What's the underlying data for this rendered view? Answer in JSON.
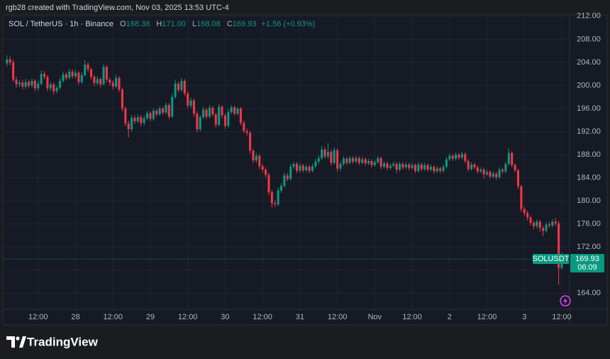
{
  "header": {
    "text": "rgb28 created with TradingView.com, Nov 03, 2025 13:53 UTC-4"
  },
  "chart_data": {
    "type": "candlestick",
    "title": "SOL / TetherUS · 1h · Binance",
    "ohlc_legend": [
      {
        "key": "O",
        "value": "168.38"
      },
      {
        "key": "H",
        "value": "171.00"
      },
      {
        "key": "L",
        "value": "168.08"
      },
      {
        "key": "C",
        "value": "169.93"
      }
    ],
    "change": "+1.56 (+0.93%)",
    "open": [
      203.8,
      204.5,
      204,
      201,
      200.2,
      200.5,
      199.8,
      200.6,
      200,
      200.8,
      199.5,
      200.3,
      202,
      201.5,
      199.5,
      200.2,
      199,
      199.6,
      200.8,
      201.9,
      201.3,
      202.4,
      201.6,
      202.2,
      200.6,
      201.8,
      203.6,
      202.8,
      201.5,
      200.4,
      201.1,
      200.2,
      203.2,
      201,
      200.5,
      199.8,
      201.3,
      199.3,
      196,
      193.4,
      192.4,
      194.4,
      193.8,
      194.5,
      193.5,
      194.3,
      195.2,
      194.2,
      195.6,
      195,
      196,
      195.3,
      196.6,
      194.6,
      198,
      200.3,
      199.2,
      200.8,
      198.6,
      196.5,
      197.4,
      195.1,
      192.4,
      194.5,
      195.8,
      194.6,
      196.1,
      195,
      193.2,
      196.3,
      194.8,
      193,
      195.4,
      196.2,
      195.1,
      196,
      193.5,
      192.1,
      191.8,
      188.7,
      187,
      187.8,
      186,
      185.4,
      184.5,
      181.5,
      179.6,
      179.4,
      181.8,
      182.6,
      184.4,
      183.8,
      185.9,
      186.4,
      185.2,
      186.1,
      185.3,
      185.9,
      185.2,
      186,
      186.8,
      187.4,
      188.9,
      187.7,
      188.5,
      186.6,
      188.8,
      185.6,
      186.4,
      187.3,
      186.6,
      187.4,
      186.8,
      187.4,
      186.6,
      187.2,
      186.5,
      186.9,
      186.2,
      186.7,
      187.4,
      185.9,
      186.5,
      185.7,
      186.1,
      186.4,
      185.4,
      186.4,
      185.8,
      186.3,
      185.7,
      186.2,
      185.2,
      186.3,
      185.5,
      186.2,
      185.4,
      185.9,
      185.1,
      185.6,
      185.2,
      185.9,
      187.2,
      187.8,
      187.3,
      188,
      187.5,
      188.1,
      186.9,
      185.5,
      186.3,
      185.8,
      185.1,
      185.4,
      184.6,
      185,
      184.2,
      184.7,
      184.1,
      185.4,
      185.1,
      186.4,
      188.3,
      186.2,
      185.3,
      182.5,
      178.6,
      177.9,
      177.1,
      176.2,
      175.6,
      176.4,
      175.3,
      174.8,
      175.9,
      175.7,
      176.4,
      176.1,
      168.38
    ],
    "high": [
      205.2,
      205,
      204.4,
      201.5,
      201,
      201,
      201.1,
      201,
      201.2,
      201.1,
      200.8,
      202.6,
      202.5,
      201.8,
      200.6,
      200.5,
      200,
      201.3,
      202.4,
      202.3,
      202.9,
      202.8,
      202.7,
      202.5,
      202.3,
      204.4,
      204,
      203.1,
      201.8,
      201.6,
      201.4,
      203.7,
      203.5,
      201.4,
      200.9,
      201.8,
      201.6,
      199.6,
      196.4,
      193.9,
      194.9,
      194.8,
      195,
      194.9,
      194.8,
      195.6,
      195.5,
      196,
      196,
      196.4,
      196.3,
      197,
      196.9,
      198.5,
      201,
      200.7,
      201.3,
      201.1,
      199,
      197.9,
      197.7,
      195.5,
      194.9,
      196.3,
      196.1,
      196.6,
      196.4,
      195.3,
      196.8,
      196.6,
      195.2,
      195.9,
      196.6,
      196.5,
      196.3,
      196.3,
      193.9,
      192.5,
      192.1,
      189,
      188.3,
      188.1,
      186.4,
      185.8,
      184.9,
      181.9,
      180.1,
      182.3,
      183.1,
      184.9,
      184.8,
      186.4,
      186.8,
      186.7,
      186.5,
      186.4,
      186.3,
      186.2,
      186.4,
      187.3,
      187.9,
      189.5,
      189.3,
      190,
      188.9,
      189.3,
      189.1,
      186.8,
      187.7,
      187.6,
      187.8,
      187.7,
      187.8,
      187.7,
      187.6,
      187.5,
      187.3,
      187.2,
      187.1,
      187.8,
      187.7,
      186.9,
      186.8,
      186.5,
      186.8,
      186.7,
      186.8,
      186.7,
      186.7,
      186.6,
      186.6,
      186.5,
      186.7,
      186.6,
      186.6,
      186.5,
      186.3,
      186.2,
      186,
      185.9,
      186.3,
      187.6,
      188.2,
      188.1,
      188.4,
      188.3,
      188.5,
      188.4,
      187.2,
      186.7,
      186.6,
      186.1,
      185.8,
      185.7,
      185.4,
      185.3,
      185.1,
      185,
      185.8,
      185.7,
      186.8,
      189.1,
      188.6,
      186.5,
      185.6,
      182.8,
      179,
      178.3,
      177.5,
      176.6,
      176.8,
      176.7,
      175.7,
      176.3,
      176.4,
      176.8,
      177,
      176.6,
      171
    ],
    "low": [
      203.3,
      203.5,
      200.6,
      199.6,
      199.7,
      199.3,
      199.4,
      199.5,
      199.6,
      199,
      199.1,
      200,
      201,
      199,
      199.1,
      198.4,
      198.6,
      199.3,
      200.5,
      200.9,
      201,
      201.2,
      201.2,
      200.1,
      200.3,
      201.5,
      202.3,
      201,
      199.9,
      200,
      199.7,
      200,
      200.6,
      200,
      199.3,
      199.5,
      198.8,
      195.5,
      192.9,
      191,
      192,
      193.3,
      193.4,
      193,
      193.1,
      194,
      193.8,
      193.9,
      194.6,
      194.7,
      194.9,
      195,
      194.2,
      194.3,
      197.7,
      198.8,
      198.9,
      198.2,
      196,
      196.1,
      194.6,
      191.9,
      192,
      194.2,
      194.2,
      194.3,
      194.6,
      192.7,
      192.9,
      194.3,
      192.5,
      192.7,
      195,
      194.7,
      194.8,
      193.1,
      191.7,
      191.3,
      188.2,
      186.5,
      186.6,
      185.5,
      184.9,
      184,
      181,
      178.8,
      178.9,
      179.1,
      181.4,
      182.3,
      183.4,
      183.5,
      185.5,
      184.8,
      184.9,
      184.9,
      185,
      184.8,
      184.9,
      185.7,
      186.4,
      187,
      187.3,
      187.3,
      186.1,
      186.3,
      185,
      185.2,
      186,
      186.2,
      186.3,
      186.4,
      186.5,
      186.2,
      186.3,
      186.1,
      186.2,
      185.8,
      185.9,
      186.4,
      185.5,
      185.6,
      185.3,
      185.4,
      185.8,
      184.8,
      185.1,
      185.4,
      185.5,
      185.3,
      185.4,
      184.8,
      184.9,
      185.1,
      185.2,
      185,
      185.1,
      184.7,
      184.8,
      184.8,
      184.9,
      185.6,
      186.9,
      186.9,
      187,
      187.1,
      187.2,
      186.5,
      185.1,
      185.2,
      185.4,
      184.7,
      184.8,
      183.9,
      184.3,
      183.8,
      183.9,
      183.6,
      183.8,
      184.7,
      184.8,
      186.1,
      185.8,
      184.9,
      182,
      178.1,
      177.4,
      176.6,
      175.7,
      175.1,
      175.2,
      174.6,
      173.9,
      174.5,
      175.3,
      175.4,
      175.7,
      165.5,
      168.08
    ],
    "close": [
      204.5,
      204,
      201,
      200.2,
      200.5,
      199.8,
      200.6,
      200,
      200.8,
      199.5,
      200.3,
      202,
      201.5,
      199.5,
      200.2,
      199,
      199.6,
      200.8,
      201.9,
      201.3,
      202.4,
      201.6,
      202.2,
      200.6,
      201.8,
      203.6,
      202.8,
      201.5,
      200.4,
      201.1,
      200.2,
      203.2,
      201,
      200.5,
      199.8,
      201.3,
      199.3,
      196,
      193.4,
      192.4,
      194.4,
      193.8,
      194.5,
      193.5,
      194.3,
      195.2,
      194.2,
      195.6,
      195,
      196,
      195.3,
      196.6,
      194.6,
      198,
      200.3,
      199.2,
      200.8,
      198.6,
      196.5,
      197.4,
      195.1,
      192.4,
      194.5,
      195.8,
      194.6,
      196.1,
      195,
      193.2,
      196.3,
      194.8,
      193,
      195.4,
      196.2,
      195.1,
      196,
      193.5,
      192.1,
      191.8,
      188.7,
      187,
      187.8,
      186,
      185.4,
      184.5,
      181.5,
      179.6,
      179.4,
      181.8,
      182.6,
      184.4,
      183.8,
      185.9,
      186.4,
      185.2,
      186.1,
      185.3,
      185.9,
      185.2,
      186,
      186.8,
      187.4,
      188.9,
      187.7,
      188.5,
      186.6,
      188.8,
      185.6,
      186.4,
      187.3,
      186.6,
      187.4,
      186.8,
      187.4,
      186.6,
      187.2,
      186.5,
      186.9,
      186.2,
      186.7,
      187.4,
      185.9,
      186.5,
      185.7,
      186.1,
      186.4,
      185.4,
      186.4,
      185.8,
      186.3,
      185.7,
      186.2,
      185.2,
      186.3,
      185.5,
      186.2,
      185.4,
      185.9,
      185.1,
      185.6,
      185.2,
      185.9,
      187.2,
      187.8,
      187.3,
      188,
      187.5,
      188.1,
      186.9,
      185.5,
      186.3,
      185.8,
      185.1,
      185.4,
      184.6,
      185,
      184.2,
      184.7,
      184.1,
      185.4,
      185.1,
      186.4,
      188.3,
      186.2,
      185.3,
      182.5,
      178.6,
      177.9,
      177.1,
      176.2,
      175.6,
      176.4,
      175.3,
      174.8,
      175.9,
      175.7,
      176.4,
      176.1,
      168.38,
      169.93
    ],
    "up_color": "#089981",
    "down_color": "#f23645",
    "xlim": [
      -1.1,
      180.5
    ],
    "xticks": [
      {
        "value": 10,
        "label": "12:00"
      },
      {
        "value": 22,
        "label": "28"
      },
      {
        "value": 34,
        "label": "12:00"
      },
      {
        "value": 46,
        "label": "29"
      },
      {
        "value": 58,
        "label": "12:00"
      },
      {
        "value": 70,
        "label": "30"
      },
      {
        "value": 82,
        "label": "12:00"
      },
      {
        "value": 94,
        "label": "31"
      },
      {
        "value": 106,
        "label": "12:00"
      },
      {
        "value": 118,
        "label": "Nov"
      },
      {
        "value": 130,
        "label": "12:00"
      },
      {
        "value": 142,
        "label": "2"
      },
      {
        "value": 154,
        "label": "12:00"
      },
      {
        "value": 166,
        "label": "3"
      },
      {
        "value": 178,
        "label": "12:00"
      }
    ],
    "ylim": [
      161.2,
      212.1
    ],
    "yticks": [
      {
        "value": 164,
        "label": "164.00"
      },
      {
        "value": 168,
        "label": "168.00"
      },
      {
        "value": 172,
        "label": "172.00"
      },
      {
        "value": 176,
        "label": "176.00"
      },
      {
        "value": 180,
        "label": "180.00"
      },
      {
        "value": 184,
        "label": "184.00"
      },
      {
        "value": 188,
        "label": "188.00"
      },
      {
        "value": 192,
        "label": "192.00"
      },
      {
        "value": 196,
        "label": "196.00"
      },
      {
        "value": 200,
        "label": "200.00"
      },
      {
        "value": 204,
        "label": "204.00"
      },
      {
        "value": 208,
        "label": "208.00"
      },
      {
        "value": 212,
        "label": "212.00"
      }
    ],
    "grid": true,
    "last_price": {
      "symbol": "SOLUSDT",
      "value": 169.93,
      "countdown": "06:09"
    }
  },
  "footer": {
    "brand": "TradingView"
  }
}
